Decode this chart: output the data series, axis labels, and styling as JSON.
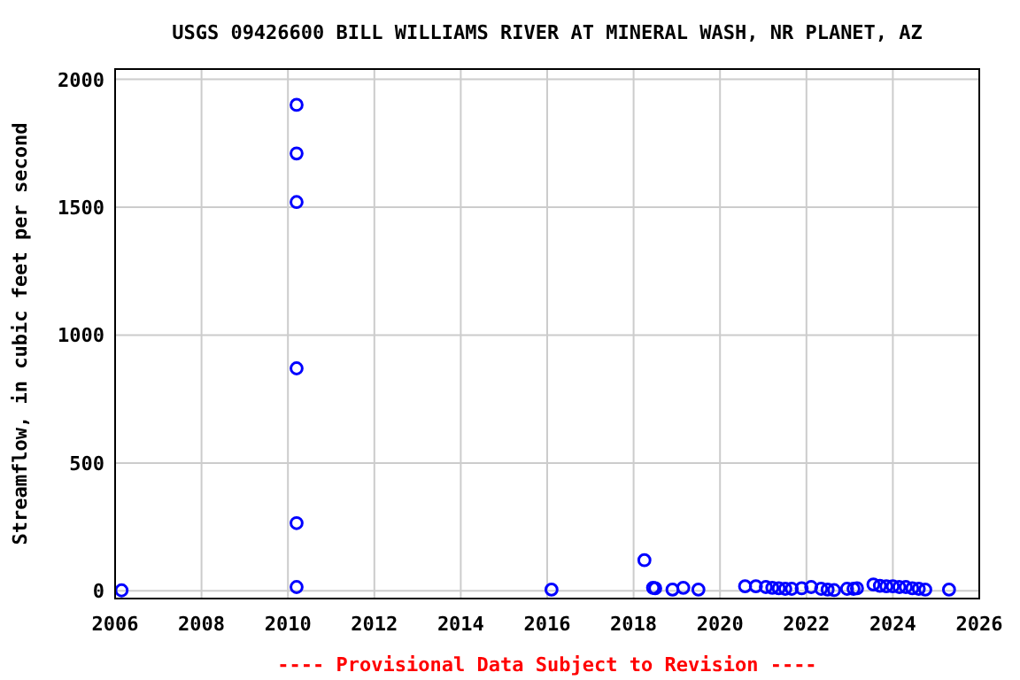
{
  "chart_data": {
    "type": "scatter",
    "title": "USGS 09426600 BILL WILLIAMS RIVER AT MINERAL WASH, NR PLANET, AZ",
    "ylabel": "Streamflow, in cubic feet per second",
    "annotations": [
      "---- Provisional Data Subject to Revision ----"
    ],
    "x": [
      2006.15,
      2010.2,
      2010.2,
      2010.2,
      2010.2,
      2010.2,
      2010.2,
      2016.1,
      2018.25,
      2018.45,
      2018.5,
      2018.9,
      2019.15,
      2019.5,
      2020.58,
      2020.83,
      2021.06,
      2021.21,
      2021.36,
      2021.51,
      2021.66,
      2021.89,
      2022.11,
      2022.34,
      2022.49,
      2022.64,
      2022.94,
      2023.09,
      2023.17,
      2023.55,
      2023.7,
      2023.85,
      2024.0,
      2024.15,
      2024.3,
      2024.45,
      2024.6,
      2024.75,
      2025.3
    ],
    "series": [
      {
        "color": "#0000ff",
        "values": [
          2,
          1900,
          1710,
          1520,
          870,
          265,
          15,
          5,
          120,
          12,
          10,
          5,
          12,
          5,
          18,
          18,
          15,
          12,
          10,
          8,
          8,
          10,
          15,
          8,
          5,
          3,
          8,
          8,
          10,
          25,
          20,
          18,
          18,
          15,
          15,
          10,
          8,
          5,
          5
        ]
      }
    ],
    "marker": "circle",
    "xlim": [
      2006,
      2026
    ],
    "xticks": [
      2006,
      2008,
      2010,
      2012,
      2014,
      2016,
      2018,
      2020,
      2022,
      2024,
      2026
    ],
    "ylim": [
      -30,
      2040
    ],
    "yticks": [
      0,
      500,
      1000,
      1500,
      2000
    ],
    "grid": true
  }
}
